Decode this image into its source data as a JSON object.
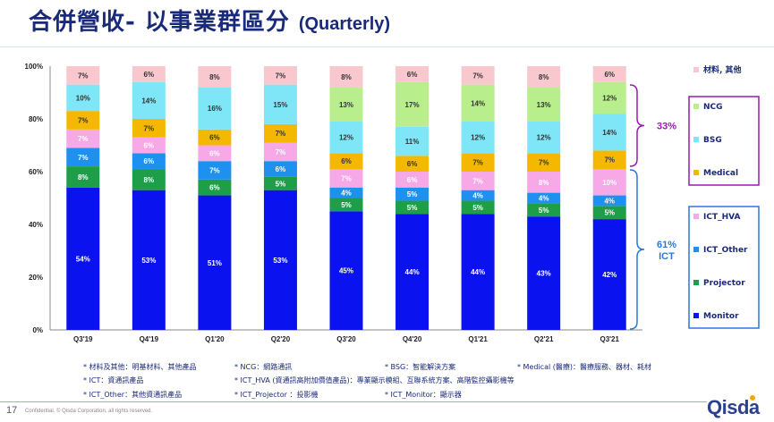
{
  "slide": {
    "title_main": "合併營收- 以事業群區分",
    "title_sub": "(Quarterly)",
    "page_number": "17",
    "confidential": "Confidential.  © Qisda Corporation, all rights reserved.",
    "logo_text": "Qisda"
  },
  "footnotes": [
    "* 材料及其他：明基材料、其他產品",
    "* NCG：網路通訊",
    "* BSG：智能解決方案",
    "* Medical (醫療)：醫療服務、器材、耗材",
    "* ICT：資通訊產品",
    "* ICT_HVA (資通訊高附加價值產品)：專業顯示模組、互聯系統方案、高階監控攝影機等",
    "* ICT_Other：其他資通訊產品",
    "* ICT_Projector ：投影機",
    "* ICT_Monitor：顯示器"
  ],
  "chart_data": {
    "type": "bar",
    "stacked": true,
    "categories": [
      "Q3'19",
      "Q4'19",
      "Q1'20",
      "Q2'20",
      "Q3'20",
      "Q4'20",
      "Q1'21",
      "Q2'21",
      "Q3'21"
    ],
    "ylim": [
      0,
      100
    ],
    "yticks": [
      "0%",
      "20%",
      "40%",
      "60%",
      "80%",
      "100%"
    ],
    "series": [
      {
        "name": "Monitor",
        "color": "#0a13ef",
        "text_color": "#ffffff",
        "values": [
          54,
          53,
          51,
          53,
          45,
          44,
          44,
          43,
          42
        ]
      },
      {
        "name": "Projector",
        "color": "#1f9e4a",
        "text_color": "#ffffff",
        "values": [
          8,
          8,
          6,
          5,
          5,
          5,
          5,
          5,
          5
        ]
      },
      {
        "name": "ICT_Other",
        "color": "#1e90f0",
        "text_color": "#ffffff",
        "values": [
          7,
          6,
          7,
          6,
          4,
          5,
          4,
          4,
          4
        ]
      },
      {
        "name": "ICT_HVA",
        "color": "#f7a8e6",
        "text_color": "#ffffff",
        "values": [
          7,
          6,
          6,
          7,
          7,
          6,
          7,
          8,
          10
        ]
      },
      {
        "name": "Medical",
        "color": "#f5b800",
        "text_color": "#333333",
        "values": [
          7,
          7,
          6,
          7,
          6,
          6,
          7,
          7,
          7
        ]
      },
      {
        "name": "BSG",
        "color": "#7fe6f7",
        "text_color": "#333333",
        "values": [
          10,
          14,
          16,
          15,
          12,
          11,
          12,
          12,
          14
        ]
      },
      {
        "name": "NCG",
        "color": "#b8ee8c",
        "text_color": "#333333",
        "values": [
          0,
          0,
          0,
          0,
          13,
          17,
          14,
          13,
          12
        ]
      },
      {
        "name": "材料, 其他",
        "color": "#f9c8cf",
        "text_color": "#333333",
        "values": [
          7,
          6,
          8,
          7,
          8,
          6,
          7,
          8,
          6
        ]
      }
    ],
    "legend_placement": "right",
    "groups": [
      {
        "label": "33%",
        "members": [
          "NCG",
          "BSG",
          "Medical"
        ],
        "color": "#9b1bb0"
      },
      {
        "label": "61%\nICT",
        "members": [
          "ICT_HVA",
          "ICT_Other",
          "Projector",
          "Monitor"
        ],
        "color": "#2a78d8"
      }
    ]
  }
}
